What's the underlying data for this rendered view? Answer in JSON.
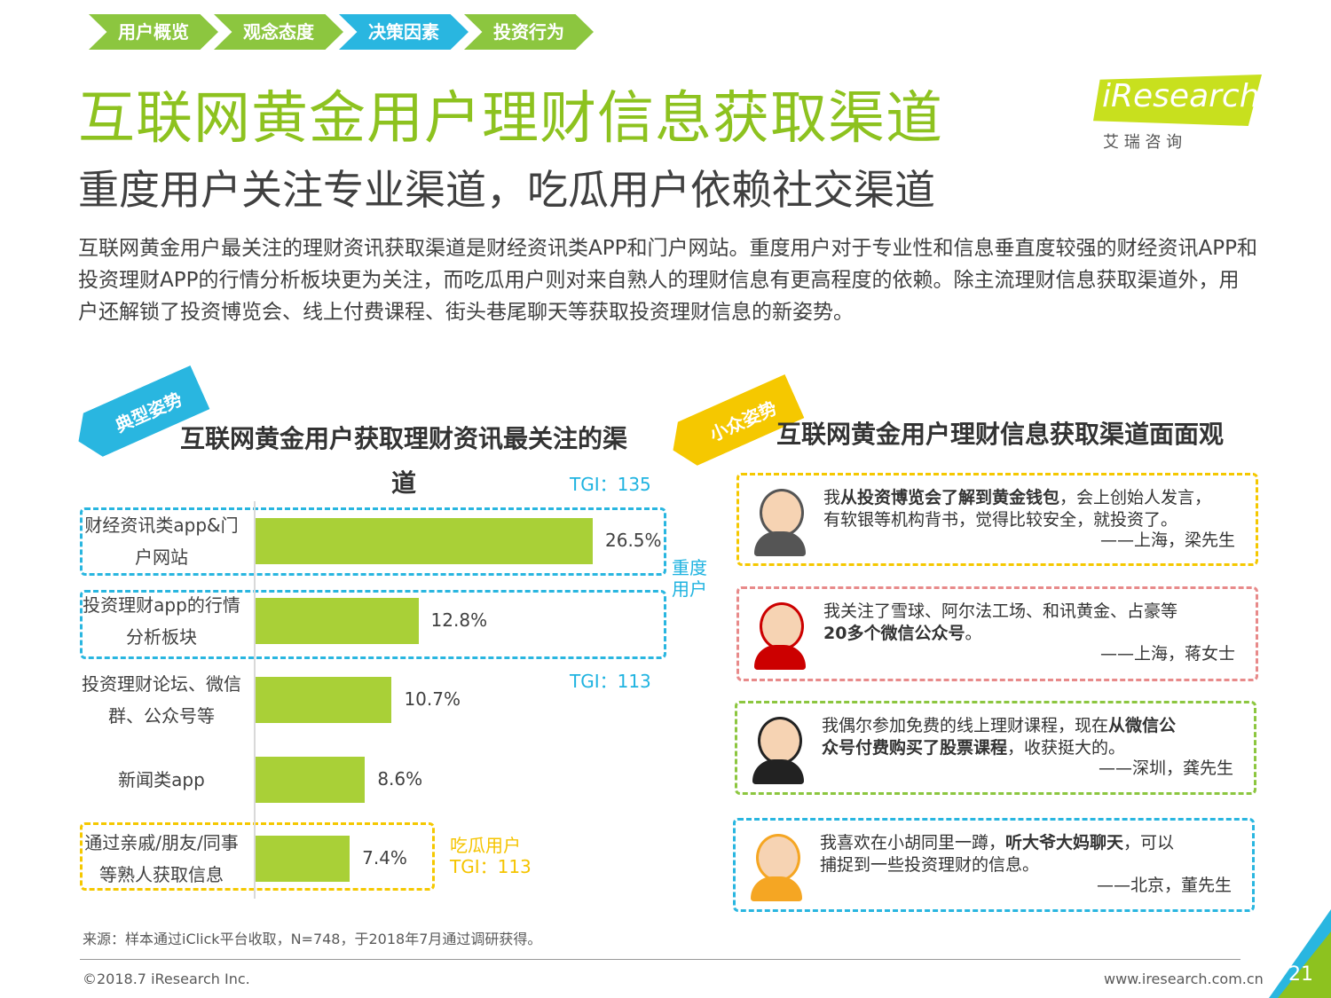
{
  "nav": {
    "items": [
      "用户概览",
      "观念态度",
      "决策因素",
      "投资行为"
    ],
    "active": 2
  },
  "header": {
    "title": "互联网黄金用户理财信息获取渠道",
    "subtitle": "重度用户关注专业渠道，吃瓜用户依赖社交渠道",
    "logo": "iResearch",
    "logo_cn": "艾 瑞 咨 询"
  },
  "body": "互联网黄金用户最关注的理财资讯获取渠道是财经资讯类APP和门户网站。重度用户对于专业性和信息垂直度较强的财经资讯APP和投资理财APP的行情分析板块更为关注，而吃瓜用户则对来自熟人的理财信息有更高程度的依赖。除主流理财信息获取渠道外，用户还解锁了投资博览会、线上付费课程、街头巷尾聊天等获取投资理财信息的新姿势。",
  "tags": [
    "典型姿势",
    "小众姿势"
  ],
  "chart_data": {
    "type": "hbar",
    "title": "互联网黄金用户获取理财资讯最关注的渠道",
    "categories": [
      "财经资讯类app&门户网站",
      "投资理财app的行情分析板块",
      "投资理财论坛、微信群、公众号等",
      "新闻类app",
      "通过亲戚/朋友/同事等熟人获取信息"
    ],
    "values": [
      26.5,
      12.8,
      10.7,
      8.6,
      7.4
    ],
    "value_labels": [
      "26.5%",
      "12.8%",
      "10.7%",
      "8.6%",
      "7.4%"
    ],
    "color": "#a9d037",
    "annotations": [
      {
        "text": "TGI：135",
        "color": "#1fb3e0"
      },
      {
        "text": "重度用户",
        "color": "#1fb3e0"
      },
      {
        "text": "TGI：113",
        "color": "#1fb3e0"
      },
      {
        "text": "吃瓜用户",
        "color": "#f5c400"
      },
      {
        "text": "TGI：113",
        "color": "#f5c400"
      }
    ]
  },
  "quotes": {
    "title": "互联网黄金用户理财信息获取渠道面面观",
    "items": [
      {
        "color": "#f5c800",
        "lines": [
          [
            {
              "text": "我",
              "bold": false
            },
            {
              "text": "从投资博览会了解到黄金钱包",
              "bold": true
            },
            {
              "text": "，会上创始人发言，",
              "bold": false
            }
          ],
          [
            {
              "text": "有软银等机构背书，觉得比较安全，就投资了。",
              "bold": false
            }
          ]
        ],
        "author": "——上海，梁先生"
      },
      {
        "color": "#e88a8a",
        "lines": [
          [
            {
              "text": "我关注了雪球、阿尔法工场、和讯黄金、占豪等",
              "bold": false
            }
          ],
          [
            {
              "text": "20多个微信公众号",
              "bold": true
            },
            {
              "text": "。",
              "bold": false
            }
          ]
        ],
        "author": "——上海，蒋女士"
      },
      {
        "color": "#8cc63f",
        "lines": [
          [
            {
              "text": "我偶尔参加免费的线上理财课程，现在",
              "bold": false
            },
            {
              "text": "从微信公",
              "bold": true
            }
          ],
          [
            {
              "text": "众号付费购买了股票课程",
              "bold": true
            },
            {
              "text": "，收获挺大的。",
              "bold": false
            }
          ]
        ],
        "author": "——深圳，龚先生"
      },
      {
        "color": "#29b6e0",
        "lines": [
          [
            {
              "text": "我喜欢在小胡同里一蹲，",
              "bold": false
            },
            {
              "text": "听大爷大妈聊天",
              "bold": true
            },
            {
              "text": "，可以",
              "bold": false
            }
          ],
          [
            {
              "text": "捕捉到一些投资理财的信息。",
              "bold": false
            }
          ]
        ],
        "author": "——北京，董先生"
      }
    ]
  },
  "footer": {
    "source": "来源：样本通过iClick平台收取，N=748，于2018年7月通过调研获得。",
    "copyright": "©2018.7 iResearch Inc.",
    "url": "www.iresearch.com.cn",
    "page": "21"
  }
}
